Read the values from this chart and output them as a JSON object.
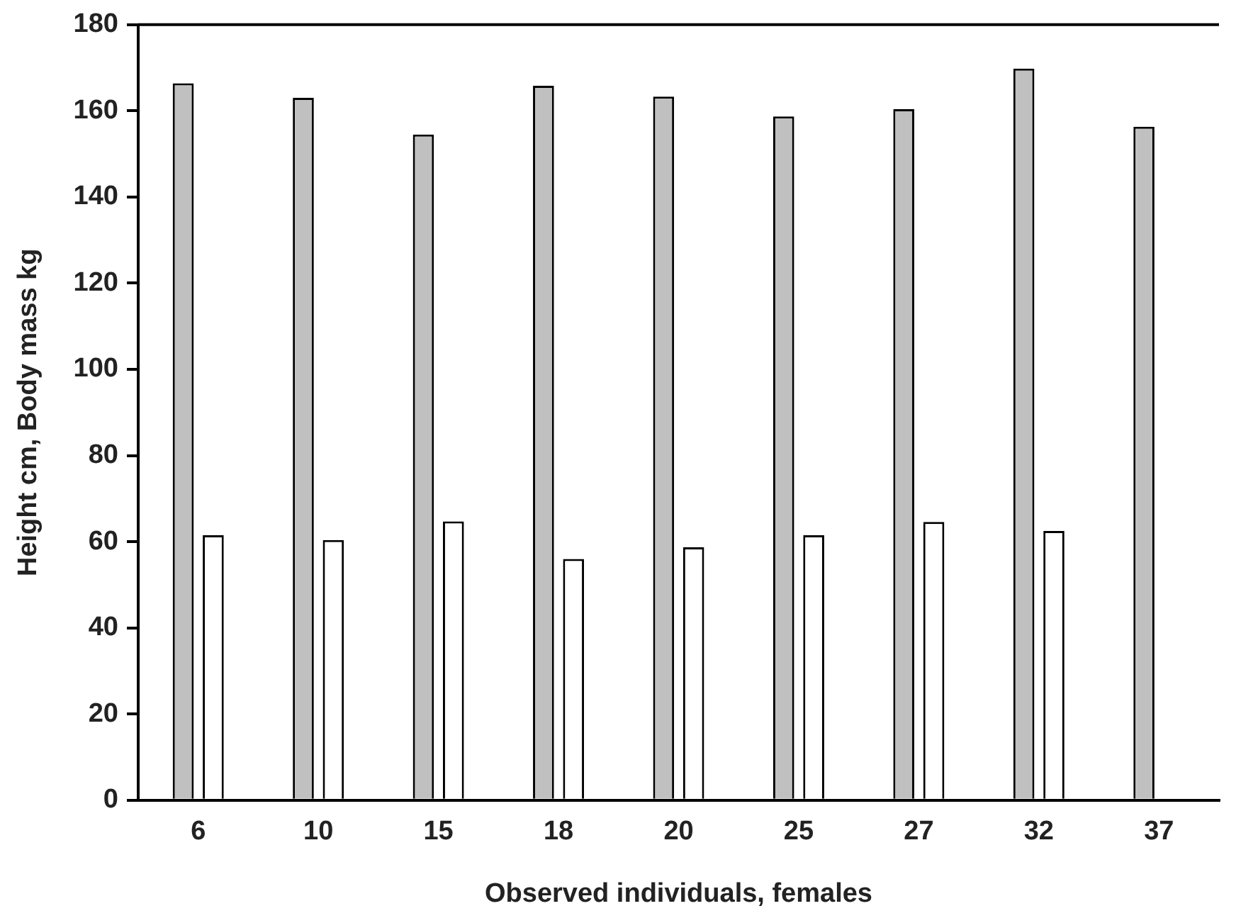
{
  "chart_data": {
    "type": "bar",
    "xlabel": "Observed individuals, females",
    "ylabel": "Height cm, Body mass kg",
    "categories": [
      "6",
      "10",
      "15",
      "18",
      "20",
      "25",
      "27",
      "32",
      "37"
    ],
    "series": [
      {
        "color": "#c0c0c0",
        "values": [
          166.4,
          163,
          154.5,
          165.8,
          163.3,
          158.7,
          160.4,
          169.8,
          156.3
        ]
      },
      {
        "color": "#ffffff",
        "values": [
          61.5,
          60.4,
          64.7,
          56,
          58.7,
          61.5,
          64.6,
          62.5,
          null
        ]
      }
    ],
    "ylim": [
      0,
      180
    ],
    "yticks": [
      0,
      20,
      40,
      60,
      80,
      100,
      120,
      140,
      160,
      180
    ],
    "grid": false,
    "legend": false
  }
}
